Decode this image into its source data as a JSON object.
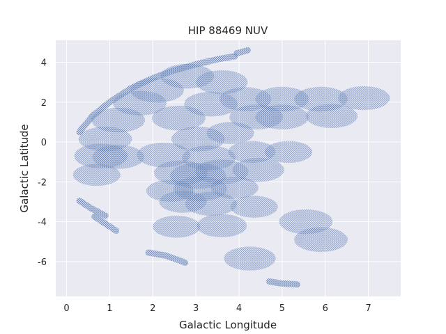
{
  "chart_data": {
    "type": "scatter",
    "title": "HIP 88469 NUV",
    "xlabel": "Galactic Longitude",
    "ylabel": "Galactic Latitude",
    "xlim": [
      -0.25,
      7.75
    ],
    "ylim": [
      -7.75,
      5.1
    ],
    "xticks": [
      "0",
      "1",
      "2",
      "3",
      "4",
      "5",
      "6",
      "7"
    ],
    "yticks": [
      "-6",
      "-4",
      "-2",
      "0",
      "2",
      "4"
    ],
    "grid": true,
    "background": "#eaeaf2",
    "grid_color": "#ffffff",
    "point_color": "#4c72b0",
    "series": [
      {
        "marker": "x",
        "footprints": [
          {
            "cx": 3.05,
            "cy": 0.15,
            "r": 0.62
          },
          {
            "cx": 2.6,
            "cy": 1.2,
            "r": 0.62
          },
          {
            "cx": 3.35,
            "cy": 1.9,
            "r": 0.62
          },
          {
            "cx": 1.7,
            "cy": 1.95,
            "r": 0.62
          },
          {
            "cx": 2.1,
            "cy": 2.6,
            "r": 0.62
          },
          {
            "cx": 2.8,
            "cy": 3.3,
            "r": 0.62
          },
          {
            "cx": 3.6,
            "cy": 3.0,
            "r": 0.6
          },
          {
            "cx": 4.15,
            "cy": 2.15,
            "r": 0.6
          },
          {
            "cx": 4.4,
            "cy": 1.25,
            "r": 0.62
          },
          {
            "cx": 5.0,
            "cy": 2.15,
            "r": 0.62
          },
          {
            "cx": 5.9,
            "cy": 2.15,
            "r": 0.62
          },
          {
            "cx": 6.9,
            "cy": 2.2,
            "r": 0.6
          },
          {
            "cx": 6.15,
            "cy": 1.3,
            "r": 0.6
          },
          {
            "cx": 5.0,
            "cy": 1.25,
            "r": 0.62
          },
          {
            "cx": 3.8,
            "cy": 0.45,
            "r": 0.55
          },
          {
            "cx": 1.2,
            "cy": 1.1,
            "r": 0.62
          },
          {
            "cx": 0.9,
            "cy": 0.15,
            "r": 0.62
          },
          {
            "cx": 0.8,
            "cy": -0.7,
            "r": 0.62
          },
          {
            "cx": 1.2,
            "cy": -0.75,
            "r": 0.6
          },
          {
            "cx": 0.7,
            "cy": -1.65,
            "r": 0.55
          },
          {
            "cx": 2.25,
            "cy": -0.65,
            "r": 0.62
          },
          {
            "cx": 3.3,
            "cy": -0.8,
            "r": 0.62
          },
          {
            "cx": 2.65,
            "cy": -1.55,
            "r": 0.62
          },
          {
            "cx": 3.05,
            "cy": -1.7,
            "r": 0.65
          },
          {
            "cx": 3.6,
            "cy": -1.5,
            "r": 0.62
          },
          {
            "cx": 4.3,
            "cy": -0.5,
            "r": 0.55
          },
          {
            "cx": 4.45,
            "cy": -1.4,
            "r": 0.6
          },
          {
            "cx": 5.15,
            "cy": -0.5,
            "r": 0.55
          },
          {
            "cx": 2.4,
            "cy": -2.45,
            "r": 0.55
          },
          {
            "cx": 3.1,
            "cy": -2.35,
            "r": 0.62
          },
          {
            "cx": 3.9,
            "cy": -2.3,
            "r": 0.55
          },
          {
            "cx": 3.35,
            "cy": -3.1,
            "r": 0.6
          },
          {
            "cx": 2.7,
            "cy": -3.0,
            "r": 0.55
          },
          {
            "cx": 3.6,
            "cy": -4.2,
            "r": 0.58
          },
          {
            "cx": 4.35,
            "cy": -3.25,
            "r": 0.55
          },
          {
            "cx": 2.55,
            "cy": -4.25,
            "r": 0.55
          },
          {
            "cx": 5.55,
            "cy": -4.0,
            "r": 0.62
          },
          {
            "cx": 5.9,
            "cy": -4.9,
            "r": 0.62
          },
          {
            "cx": 4.25,
            "cy": -5.85,
            "r": 0.6
          }
        ],
        "arcs": [
          {
            "x": [
              0.3,
              0.6,
              1.0,
              1.5,
              2.0,
              2.5,
              3.0,
              3.5,
              3.9
            ],
            "y": [
              0.5,
              1.3,
              2.0,
              2.7,
              3.2,
              3.6,
              3.9,
              4.15,
              4.3
            ]
          },
          {
            "x": [
              3.95,
              4.2
            ],
            "y": [
              4.45,
              4.6
            ]
          },
          {
            "x": [
              0.3,
              0.55,
              0.9
            ],
            "y": [
              -2.95,
              -3.3,
              -3.7
            ]
          },
          {
            "x": [
              0.65,
              0.9,
              1.15
            ],
            "y": [
              -3.75,
              -4.1,
              -4.45
            ]
          },
          {
            "x": [
              1.9,
              2.3,
              2.75
            ],
            "y": [
              -5.55,
              -5.7,
              -6.05
            ]
          },
          {
            "x": [
              4.7,
              5.0,
              5.35
            ],
            "y": [
              -7.0,
              -7.1,
              -7.15
            ]
          }
        ]
      }
    ]
  }
}
